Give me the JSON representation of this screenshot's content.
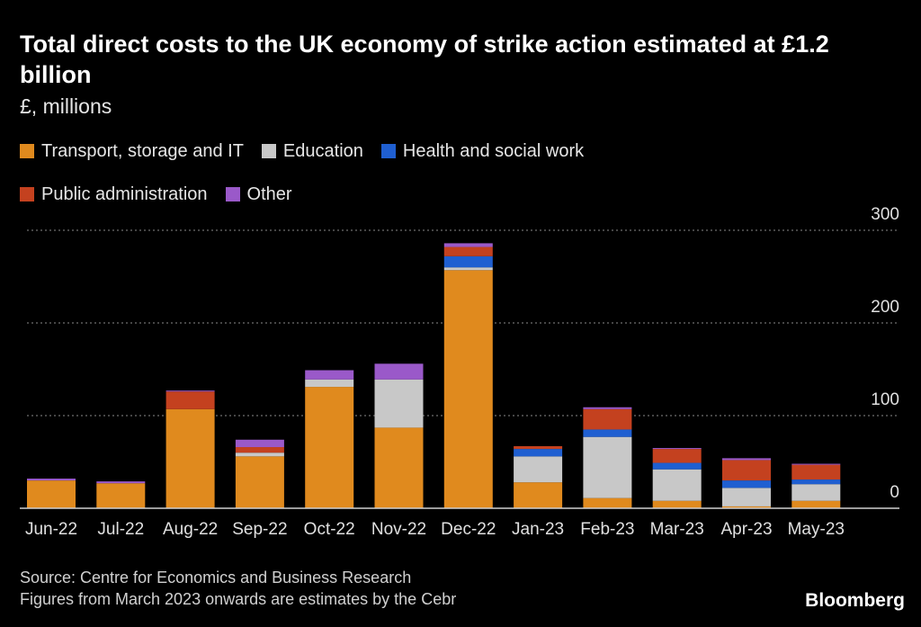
{
  "header": {
    "title": "Total direct costs to the UK economy of strike action estimated at £1.2 billion",
    "subtitle": "£, millions"
  },
  "legend": [
    {
      "label": "Transport, storage and IT",
      "color": "#e08a1e"
    },
    {
      "label": "Education",
      "color": "#c8c8c8"
    },
    {
      "label": "Health and social work",
      "color": "#1f5fd1"
    },
    {
      "label": "Public administration",
      "color": "#c4411f"
    },
    {
      "label": "Other",
      "color": "#9a59c9"
    }
  ],
  "chart_data": {
    "type": "bar",
    "stacked": true,
    "title": "Total direct costs to the UK economy of strike action estimated at £1.2 billion",
    "ylabel": "£, millions",
    "xlabel": "",
    "ylim": [
      0,
      300
    ],
    "yticks": [
      0,
      100,
      200,
      300
    ],
    "grid": true,
    "legend_position": "top-left",
    "categories": [
      "Jun-22",
      "Jul-22",
      "Aug-22",
      "Sep-22",
      "Oct-22",
      "Nov-22",
      "Dec-22",
      "Jan-23",
      "Feb-23",
      "Mar-23",
      "Apr-23",
      "May-23"
    ],
    "series": [
      {
        "name": "Transport, storage and IT",
        "color": "#e08a1e",
        "values": [
          30,
          27,
          107,
          56,
          131,
          87,
          257,
          28,
          11,
          8,
          2,
          8
        ]
      },
      {
        "name": "Education",
        "color": "#c8c8c8",
        "values": [
          0,
          0,
          0,
          4,
          8,
          52,
          3,
          28,
          66,
          34,
          20,
          18
        ]
      },
      {
        "name": "Health and social work",
        "color": "#1f5fd1",
        "values": [
          0,
          0,
          0,
          0,
          0,
          0,
          12,
          8,
          8,
          7,
          8,
          5
        ]
      },
      {
        "name": "Public administration",
        "color": "#c4411f",
        "values": [
          0,
          0,
          19,
          6,
          0,
          0,
          10,
          3,
          22,
          15,
          22,
          16
        ]
      },
      {
        "name": "Other",
        "color": "#9a59c9",
        "values": [
          2,
          2,
          1,
          8,
          10,
          17,
          4,
          0,
          2,
          1,
          2,
          1
        ]
      }
    ]
  },
  "footer": {
    "source": "Source: Centre for Economics and Business Research",
    "note": "Figures from March 2023 onwards are estimates by the Cebr",
    "brand": "Bloomberg"
  }
}
